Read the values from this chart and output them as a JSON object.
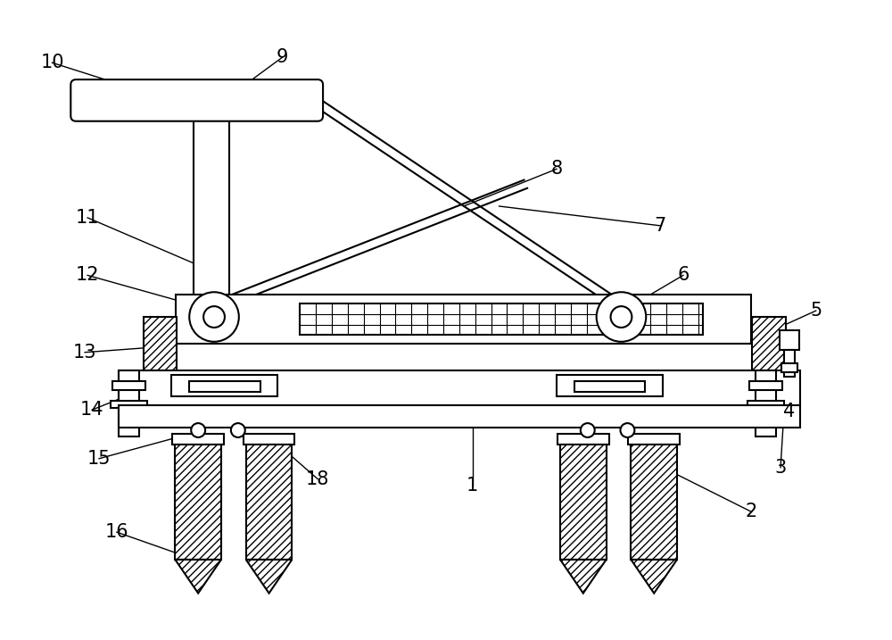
{
  "bg_color": "#ffffff",
  "line_color": "#000000",
  "fig_width": 10.0,
  "fig_height": 7.17,
  "dpi": 100
}
